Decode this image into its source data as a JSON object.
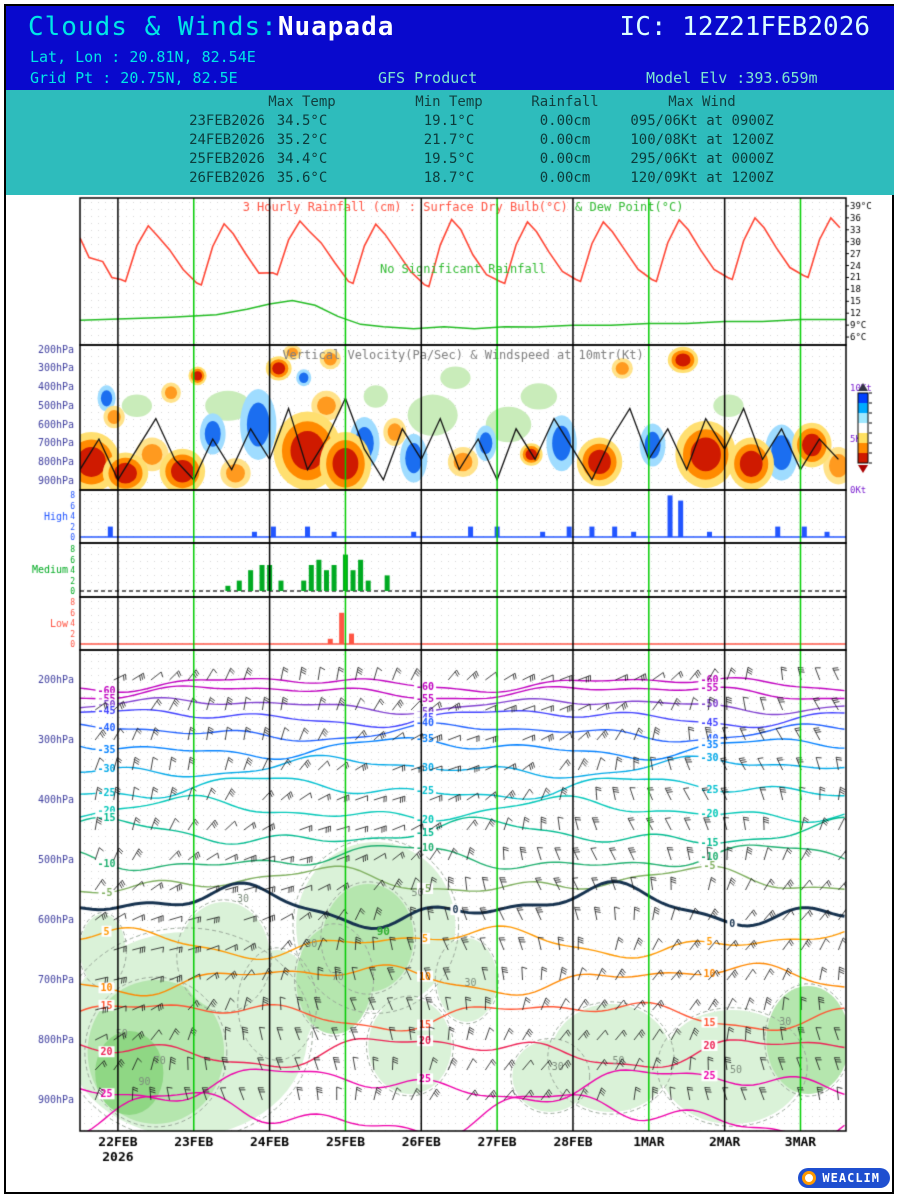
{
  "header": {
    "title_prefix": "Clouds & Winds:",
    "station": "Nuapada",
    "ic_label": "IC: 12Z21FEB2026",
    "latlon": "Lat, Lon : 20.81N, 82.54E",
    "grid_pt": "Grid Pt  : 20.75N, 82.5E",
    "product": "GFS Product",
    "model_elev": "Model Elv :393.659m"
  },
  "summary_table": {
    "columns": [
      "",
      "Max Temp",
      "Min Temp",
      "Rainfall",
      "Max Wind"
    ],
    "rows": [
      [
        "23FEB2026",
        "34.5°C",
        "19.1°C",
        "0.00cm",
        "095/06Kt at 0900Z"
      ],
      [
        "24FEB2026",
        "35.2°C",
        "21.7°C",
        "0.00cm",
        "100/08Kt at 1200Z"
      ],
      [
        "25FEB2026",
        "34.4°C",
        "19.5°C",
        "0.00cm",
        "295/06Kt at 0000Z"
      ],
      [
        "26FEB2026",
        "35.6°C",
        "18.7°C",
        "0.00cm",
        "120/09Kt at 1200Z"
      ]
    ]
  },
  "footer": {
    "logo_text": "WEACLIM"
  },
  "chart_data": {
    "type": "meteogram",
    "x_axis": {
      "labels": [
        "22FEB",
        "23FEB",
        "24FEB",
        "25FEB",
        "26FEB",
        "27FEB",
        "28FEB",
        "1MAR",
        "2MAR",
        "3MAR"
      ],
      "year_label": "2026",
      "t_total_days": 10.1,
      "dayline_colors": [
        "black",
        "green",
        "black",
        "green",
        "black",
        "green",
        "black",
        "green",
        "black",
        "green"
      ]
    },
    "surface_panel": {
      "title_left": "3 Hourly Rainfall (cm) : Surface Dry Bulb(°C)",
      "title_right": " & Dew Point(°C)",
      "annotation": "No Significant Rainfall",
      "y_range": [
        4,
        41
      ],
      "y_tick_values": [
        39,
        36,
        33,
        30,
        27,
        24,
        21,
        18,
        15,
        12,
        9,
        6
      ],
      "y_tick_labels": [
        "39°C",
        "36",
        "33",
        "30",
        "27",
        "24",
        "21",
        "18",
        "15",
        "12",
        "9°C",
        "6°C"
      ],
      "daily_temp": [
        {
          "max": 34.0,
          "min": 20.0
        },
        {
          "max": 34.0,
          "min": 20.0
        },
        {
          "max": 34.5,
          "min": 19.1
        },
        {
          "max": 35.2,
          "min": 21.7
        },
        {
          "max": 34.4,
          "min": 19.5
        },
        {
          "max": 35.6,
          "min": 18.7
        },
        {
          "max": 35.0,
          "min": 19.5
        },
        {
          "max": 35.0,
          "min": 20.0
        },
        {
          "max": 35.5,
          "min": 20.0
        },
        {
          "max": 36.0,
          "min": 20.5
        },
        {
          "max": 36.0,
          "min": 21.0
        }
      ],
      "dew_point": [
        [
          0,
          10.2
        ],
        [
          0.6,
          10.6
        ],
        [
          1.2,
          11.0
        ],
        [
          1.8,
          11.6
        ],
        [
          2.2,
          13.0
        ],
        [
          2.5,
          14.3
        ],
        [
          2.8,
          15.2
        ],
        [
          3.1,
          14.0
        ],
        [
          3.4,
          11.2
        ],
        [
          3.7,
          9.2
        ],
        [
          4.0,
          8.6
        ],
        [
          4.4,
          8.1
        ],
        [
          4.8,
          8.6
        ],
        [
          5.2,
          8.1
        ],
        [
          5.6,
          8.6
        ],
        [
          6.0,
          8.5
        ],
        [
          6.5,
          9.0
        ],
        [
          7.0,
          9.0
        ],
        [
          7.5,
          9.4
        ],
        [
          8.0,
          9.4
        ],
        [
          8.5,
          9.9
        ],
        [
          9.0,
          9.9
        ],
        [
          9.5,
          10.4
        ],
        [
          10.1,
          10.4
        ]
      ]
    },
    "vv_panel": {
      "title": "Vertical Velocity(Pa/Sec) & Windspeed at 10mtr(Kt)",
      "pressure_labels": [
        "200hPa",
        "300hPa",
        "400hPa",
        "500hPa",
        "600hPa",
        "700hPa",
        "800hPa",
        "900hPa"
      ],
      "wind_ticks": [
        "10Kt",
        "5Kt",
        "0Kt"
      ],
      "legend_colors": [
        "#0040ff",
        "#00aaff",
        "#9fe8ff",
        "#ffffff",
        "#ffe060",
        "#ff8a00",
        "#cf1a00"
      ],
      "windspeed_10m": [
        2,
        5,
        1,
        4,
        7,
        3,
        1,
        5,
        2,
        6,
        3,
        8,
        2,
        5,
        9,
        4,
        1,
        6,
        3,
        7,
        2,
        5,
        1,
        6,
        3,
        7,
        4,
        1,
        5,
        8,
        3,
        6,
        2,
        7,
        4,
        8,
        3,
        6,
        2,
        5,
        3
      ],
      "blobs": [
        [
          0.15,
          800,
          0.38,
          160,
          "r"
        ],
        [
          0.6,
          860,
          0.3,
          110,
          "r"
        ],
        [
          0.45,
          560,
          0.14,
          60,
          "o"
        ],
        [
          0.95,
          760,
          0.22,
          90,
          "o"
        ],
        [
          1.35,
          850,
          0.3,
          120,
          "r"
        ],
        [
          1.2,
          430,
          0.13,
          55,
          "o"
        ],
        [
          1.55,
          340,
          0.12,
          50,
          "r"
        ],
        [
          2.05,
          860,
          0.2,
          80,
          "o"
        ],
        [
          2.62,
          300,
          0.17,
          65,
          "r"
        ],
        [
          2.8,
          215,
          0.12,
          40,
          "o"
        ],
        [
          3.0,
          740,
          0.45,
          210,
          "r"
        ],
        [
          3.5,
          810,
          0.34,
          170,
          "r"
        ],
        [
          3.25,
          500,
          0.2,
          80,
          "o"
        ],
        [
          3.3,
          250,
          0.14,
          55,
          "o"
        ],
        [
          4.15,
          640,
          0.15,
          75,
          "o"
        ],
        [
          5.05,
          800,
          0.2,
          80,
          "o"
        ],
        [
          5.95,
          760,
          0.15,
          60,
          "r"
        ],
        [
          6.85,
          800,
          0.3,
          130,
          "r"
        ],
        [
          7.15,
          300,
          0.14,
          55,
          "o"
        ],
        [
          7.95,
          255,
          0.2,
          70,
          "r"
        ],
        [
          8.25,
          760,
          0.4,
          180,
          "r"
        ],
        [
          8.85,
          810,
          0.3,
          140,
          "r"
        ],
        [
          9.65,
          710,
          0.26,
          120,
          "r"
        ],
        [
          10.0,
          820,
          0.2,
          100,
          "o"
        ],
        [
          0.35,
          460,
          0.12,
          70,
          "b"
        ],
        [
          1.75,
          650,
          0.17,
          110,
          "b"
        ],
        [
          2.35,
          600,
          0.24,
          190,
          "b"
        ],
        [
          3.75,
          700,
          0.2,
          140,
          "b"
        ],
        [
          4.4,
          780,
          0.18,
          130,
          "b"
        ],
        [
          5.35,
          700,
          0.14,
          95,
          "b"
        ],
        [
          6.35,
          700,
          0.2,
          150,
          "b"
        ],
        [
          7.55,
          710,
          0.17,
          115,
          "b"
        ],
        [
          9.25,
          750,
          0.22,
          150,
          "b"
        ],
        [
          2.95,
          350,
          0.1,
          45,
          "b"
        ],
        [
          0.75,
          500,
          0.2,
          60,
          "g"
        ],
        [
          1.95,
          500,
          0.3,
          80,
          "g"
        ],
        [
          3.9,
          450,
          0.16,
          60,
          "g"
        ],
        [
          4.65,
          550,
          0.33,
          110,
          "g"
        ],
        [
          4.95,
          350,
          0.2,
          60,
          "g"
        ],
        [
          5.65,
          600,
          0.3,
          95,
          "g"
        ],
        [
          6.05,
          450,
          0.24,
          70,
          "g"
        ],
        [
          8.55,
          500,
          0.2,
          60,
          "g"
        ]
      ]
    },
    "cloud_panels": {
      "y_ticks": [
        8,
        6,
        4,
        2,
        0
      ],
      "groups": [
        {
          "label": "High",
          "color": "#2255ff",
          "baseline_dashed": false,
          "bars": [
            [
              0.4,
              2
            ],
            [
              2.3,
              1
            ],
            [
              2.55,
              2
            ],
            [
              3.0,
              2
            ],
            [
              3.35,
              1
            ],
            [
              4.4,
              1
            ],
            [
              5.15,
              2
            ],
            [
              5.5,
              2
            ],
            [
              6.1,
              1
            ],
            [
              6.45,
              2
            ],
            [
              6.75,
              2
            ],
            [
              7.05,
              2
            ],
            [
              7.3,
              1
            ],
            [
              7.78,
              8
            ],
            [
              7.92,
              7
            ],
            [
              8.3,
              1
            ],
            [
              9.2,
              2
            ],
            [
              9.55,
              2
            ],
            [
              9.85,
              1
            ]
          ]
        },
        {
          "label": "Medium",
          "color": "#00aa22",
          "baseline_dashed": true,
          "bars": [
            [
              1.95,
              1
            ],
            [
              2.1,
              2
            ],
            [
              2.25,
              4
            ],
            [
              2.4,
              5
            ],
            [
              2.5,
              5
            ],
            [
              2.65,
              2
            ],
            [
              2.95,
              2
            ],
            [
              3.05,
              5
            ],
            [
              3.15,
              6
            ],
            [
              3.25,
              4
            ],
            [
              3.35,
              5
            ],
            [
              3.5,
              7
            ],
            [
              3.6,
              4
            ],
            [
              3.7,
              6
            ],
            [
              3.8,
              2
            ],
            [
              4.05,
              3
            ]
          ]
        },
        {
          "label": "Low",
          "color": "#ff5544",
          "baseline_dashed": false,
          "bars": [
            [
              3.3,
              1
            ],
            [
              3.45,
              6
            ],
            [
              3.58,
              2
            ]
          ]
        }
      ]
    },
    "upper_panel": {
      "pressure_labels": [
        "200hPa",
        "300hPa",
        "400hPa",
        "500hPa",
        "600hPa",
        "700hPa",
        "800hPa",
        "900hPa"
      ],
      "temp_contours": [
        {
          "label": "-60",
          "color": "#c000c0",
          "p": 206,
          "amp": 5
        },
        {
          "label": "-55",
          "color": "#c000c0",
          "p": 220,
          "amp": 5
        },
        {
          "label": "-50",
          "color": "#8040d0",
          "p": 242,
          "amp": 5
        },
        {
          "label": "-45",
          "color": "#4040ff",
          "p": 262,
          "amp": 6
        },
        {
          "label": "-40",
          "color": "#2060ff",
          "p": 287,
          "amp": 6
        },
        {
          "label": "-35",
          "color": "#0080ff",
          "p": 313,
          "amp": 7
        },
        {
          "label": "-30",
          "color": "#00a8e8",
          "p": 346,
          "amp": 7
        },
        {
          "label": "-25",
          "color": "#00c0d0",
          "p": 381,
          "amp": 8
        },
        {
          "label": "-20",
          "color": "#00c8b8",
          "p": 417,
          "amp": 8
        },
        {
          "label": "-15",
          "color": "#00bb90",
          "p": 456,
          "amp": 9
        },
        {
          "label": "-10",
          "color": "#20b070",
          "p": 498,
          "amp": 9
        },
        {
          "label": "-5",
          "color": "#80b060",
          "p": 536,
          "amp": 9
        },
        {
          "label": "5",
          "color": "#ff9900",
          "p": 637,
          "amp": 10
        },
        {
          "label": "10",
          "color": "#ff8800",
          "p": 697,
          "amp": 10
        },
        {
          "label": "15",
          "color": "#ff5533",
          "p": 757,
          "amp": 10
        },
        {
          "label": "20",
          "color": "#ee2255",
          "p": 818,
          "amp": 11
        },
        {
          "label": "25",
          "color": "#ee00aa",
          "p": 874,
          "amp": 12
        },
        {
          "label": "",
          "color": "#ee00aa",
          "p": 925,
          "amp": 16
        }
      ],
      "zero_line": {
        "label": "0",
        "color": "#16324f",
        "p": 578,
        "amp": 14
      },
      "rh_regions": [
        [
          1.4,
          790,
          1.6,
          170,
          0
        ],
        [
          1.0,
          820,
          0.9,
          120,
          1
        ],
        [
          0.65,
          855,
          0.45,
          70,
          2
        ],
        [
          1.9,
          660,
          0.6,
          90,
          0
        ],
        [
          2.6,
          740,
          0.5,
          90,
          0
        ],
        [
          3.9,
          610,
          1.05,
          140,
          0
        ],
        [
          3.8,
          630,
          0.6,
          90,
          1
        ],
        [
          3.35,
          700,
          0.5,
          90,
          1
        ],
        [
          4.35,
          810,
          0.55,
          80,
          0
        ],
        [
          5.1,
          700,
          0.4,
          70,
          0
        ],
        [
          6.2,
          860,
          0.5,
          60,
          0
        ],
        [
          7.0,
          830,
          0.8,
          90,
          0
        ],
        [
          8.6,
          845,
          0.95,
          95,
          0
        ],
        [
          9.6,
          800,
          0.55,
          90,
          1
        ],
        [
          0.3,
          650,
          0.3,
          60,
          0
        ]
      ],
      "rh_labels": [
        {
          "t": 0.55,
          "p": 790,
          "v": "50",
          "strong": false
        },
        {
          "t": 1.05,
          "p": 835,
          "v": "70",
          "strong": false
        },
        {
          "t": 0.85,
          "p": 870,
          "v": "90",
          "strong": false
        },
        {
          "t": 2.15,
          "p": 565,
          "v": "30",
          "strong": false
        },
        {
          "t": 3.05,
          "p": 640,
          "v": "30",
          "strong": false
        },
        {
          "t": 4.0,
          "p": 620,
          "v": "90",
          "strong": true
        },
        {
          "t": 3.4,
          "p": 695,
          "v": "70",
          "strong": false
        },
        {
          "t": 4.45,
          "p": 555,
          "v": "50",
          "strong": false
        },
        {
          "t": 6.3,
          "p": 845,
          "v": "30",
          "strong": false
        },
        {
          "t": 7.1,
          "p": 835,
          "v": "50",
          "strong": false
        },
        {
          "t": 8.65,
          "p": 850,
          "v": "50",
          "strong": false
        },
        {
          "t": 9.3,
          "p": 770,
          "v": "30",
          "strong": false
        },
        {
          "t": 5.15,
          "p": 705,
          "v": "30",
          "strong": false
        }
      ],
      "barb_levels": [
        200,
        250,
        300,
        350,
        400,
        450,
        500,
        550,
        600,
        650,
        700,
        750,
        800,
        850,
        900
      ]
    }
  }
}
